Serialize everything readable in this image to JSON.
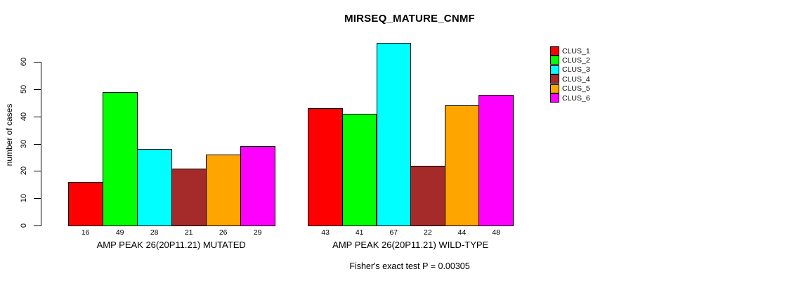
{
  "chart_data": {
    "type": "bar",
    "title": "MIRSEQ_MATURE_CNMF",
    "ylabel": "number of cases",
    "xlabel": "",
    "yticks": [
      0,
      10,
      20,
      30,
      40,
      50,
      60
    ],
    "ylim": [
      0,
      67
    ],
    "grid": false,
    "legend_position": "right",
    "clusters": [
      {
        "name": "CLUS_1",
        "color": "#FF0000"
      },
      {
        "name": "CLUS_2",
        "color": "#00FF00"
      },
      {
        "name": "CLUS_3",
        "color": "#00FFFF"
      },
      {
        "name": "CLUS_4",
        "color": "#A52A2A"
      },
      {
        "name": "CLUS_5",
        "color": "#FFA500"
      },
      {
        "name": "CLUS_6",
        "color": "#FF00FF"
      }
    ],
    "groups": [
      {
        "label": "AMP PEAK 26(20P11.21) MUTATED",
        "values": [
          16,
          49,
          28,
          21,
          26,
          29
        ]
      },
      {
        "label": "AMP PEAK 26(20P11.21) WILD-TYPE",
        "values": [
          43,
          41,
          67,
          22,
          44,
          48
        ]
      }
    ],
    "footnote": "Fisher's exact test P = 0.00305"
  }
}
